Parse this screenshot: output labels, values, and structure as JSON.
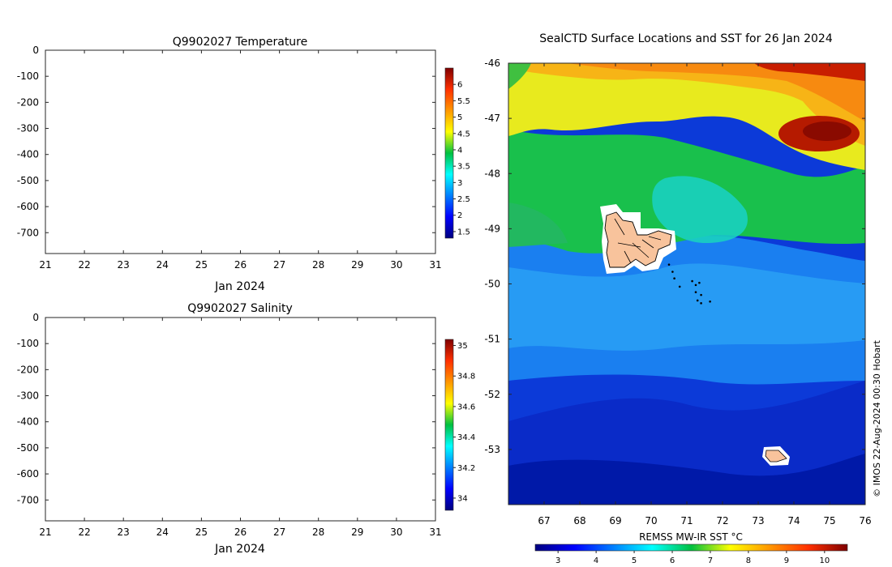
{
  "chart_data": [
    {
      "type": "heatmap",
      "title": "Q9902027  Temperature",
      "xlabel": "Jan 2024",
      "ylabel": "",
      "x_ticks": [
        "21",
        "22",
        "23",
        "24",
        "25",
        "26",
        "27",
        "28",
        "29",
        "30",
        "31"
      ],
      "xlim": [
        21,
        31
      ],
      "y_ticks": [
        "0",
        "-100",
        "-200",
        "-300",
        "-400",
        "-500",
        "-600",
        "-700"
      ],
      "ylim": [
        -780,
        0
      ],
      "colorbar": {
        "ticks": [
          "1.5",
          "2",
          "2.5",
          "3",
          "3.5",
          "4",
          "4.5",
          "5",
          "5.5",
          "6"
        ],
        "range": [
          1.3,
          6.5
        ]
      },
      "values": []
    },
    {
      "type": "heatmap",
      "title": "Q9902027  Salinity",
      "xlabel": "Jan 2024",
      "ylabel": "",
      "x_ticks": [
        "21",
        "22",
        "23",
        "24",
        "25",
        "26",
        "27",
        "28",
        "29",
        "30",
        "31"
      ],
      "xlim": [
        21,
        31
      ],
      "y_ticks": [
        "0",
        "-100",
        "-200",
        "-300",
        "-400",
        "-500",
        "-600",
        "-700"
      ],
      "ylim": [
        -780,
        0
      ],
      "colorbar": {
        "ticks": [
          "34",
          "34.2",
          "34.4",
          "34.6",
          "34.8",
          "35"
        ],
        "range": [
          33.92,
          35.04
        ]
      },
      "values": []
    },
    {
      "type": "heatmap",
      "title": "SealCTD Surface Locations and SST for 26 Jan 2024",
      "xlabel": "",
      "ylabel": "",
      "x_ticks": [
        "67",
        "68",
        "69",
        "70",
        "71",
        "72",
        "73",
        "74",
        "75",
        "76"
      ],
      "xlim": [
        66,
        76
      ],
      "y_ticks": [
        "-46",
        "-47",
        "-48",
        "-49",
        "-50",
        "-51",
        "-52",
        "-53"
      ],
      "ylim": [
        -54,
        -46
      ],
      "colorbar": {
        "label": "REMSS MW-IR SST °C",
        "ticks": [
          "3",
          "4",
          "5",
          "6",
          "7",
          "8",
          "9",
          "10"
        ],
        "range": [
          2.4,
          10.6
        ]
      },
      "seal_locations": [
        {
          "lon": 70.5,
          "lat": -49.65
        },
        {
          "lon": 70.6,
          "lat": -49.78
        },
        {
          "lon": 70.65,
          "lat": -49.9
        },
        {
          "lon": 70.8,
          "lat": -50.05
        },
        {
          "lon": 71.15,
          "lat": -49.95
        },
        {
          "lon": 71.25,
          "lat": -50.02
        },
        {
          "lon": 71.35,
          "lat": -49.98
        },
        {
          "lon": 71.25,
          "lat": -50.15
        },
        {
          "lon": 71.4,
          "lat": -50.2
        },
        {
          "lon": 71.3,
          "lat": -50.3
        },
        {
          "lon": 71.4,
          "lat": -50.35
        },
        {
          "lon": 71.65,
          "lat": -50.32
        }
      ],
      "credit": "© IMOS 22-Aug-2024 00:30 Hobart"
    }
  ]
}
